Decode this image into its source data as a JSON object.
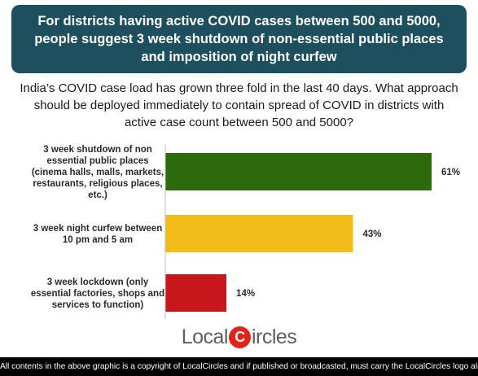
{
  "banner": {
    "line1": "For districts having active COVID cases between 500 and 5000,",
    "line2": "people suggest 3 week shutdown of non-essential public places",
    "line3": "and imposition of night curfew"
  },
  "question": {
    "line1": "India’s COVID case load has grown three fold in the last 40 days. What approach",
    "line2": "should be deployed immediately to contain spread of COVID in districts with",
    "line3": "active case count between 500 and 5000?"
  },
  "chart_data": {
    "type": "bar",
    "orientation": "horizontal",
    "categories": [
      [
        "3 week shutdown of non",
        "essential public places",
        "(cinema halls, malls, markets,",
        "restaurants, religious places,",
        "etc.)"
      ],
      [
        "3 week night curfew between",
        "10 pm and 5 am"
      ],
      [
        "3 week lockdown (only",
        "essential factories, shops and",
        "services to function)"
      ]
    ],
    "values": [
      61,
      43,
      14
    ],
    "value_labels": [
      "61%",
      "43%",
      "14%"
    ],
    "colors": [
      "#2d6a0e",
      "#f1bc19",
      "#c8161d"
    ],
    "xlim": [
      0,
      61
    ]
  },
  "logo": {
    "text_before": "Local",
    "circle_letter": "C",
    "text_after": "ircles"
  },
  "footer": {
    "text": "All contents in the above graphic is a copyright of LocalCircles and if published or broadcasted, must carry the LocalCircles logo along with it."
  }
}
